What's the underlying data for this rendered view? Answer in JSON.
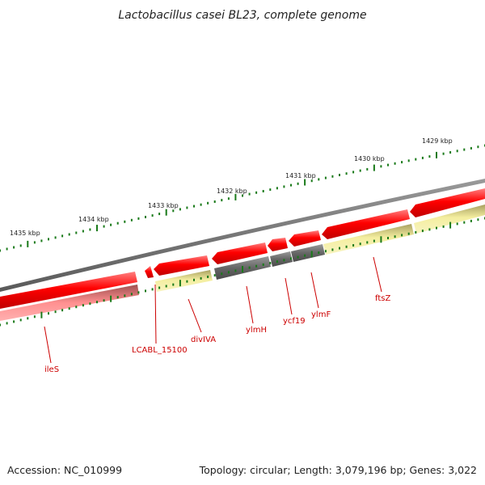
{
  "title": "Lactobacillus casei BL23, complete genome",
  "footer": {
    "accession": "Accession: NC_010999",
    "topology": "Topology: circular; Length: 3,079,196 bp; Genes: 3,022"
  },
  "kbp_labels": [
    "1435 kbp",
    "1434 kbp",
    "1433 kbp",
    "1432 kbp",
    "1431 kbp",
    "1430 kbp",
    "1429 kbp"
  ],
  "gene_labels": [
    "ileS",
    "LCABL_15100",
    "divIVA",
    "ylmH",
    "ycf19",
    "ylmF",
    "ftsZ"
  ],
  "colors": {
    "forward_gene": "#ff0000",
    "backbone": "#777777",
    "reverse_gene": "#555555",
    "reverse_light": "#f0e68c",
    "tick": "#1a7a1a",
    "label": "#cc0000"
  }
}
